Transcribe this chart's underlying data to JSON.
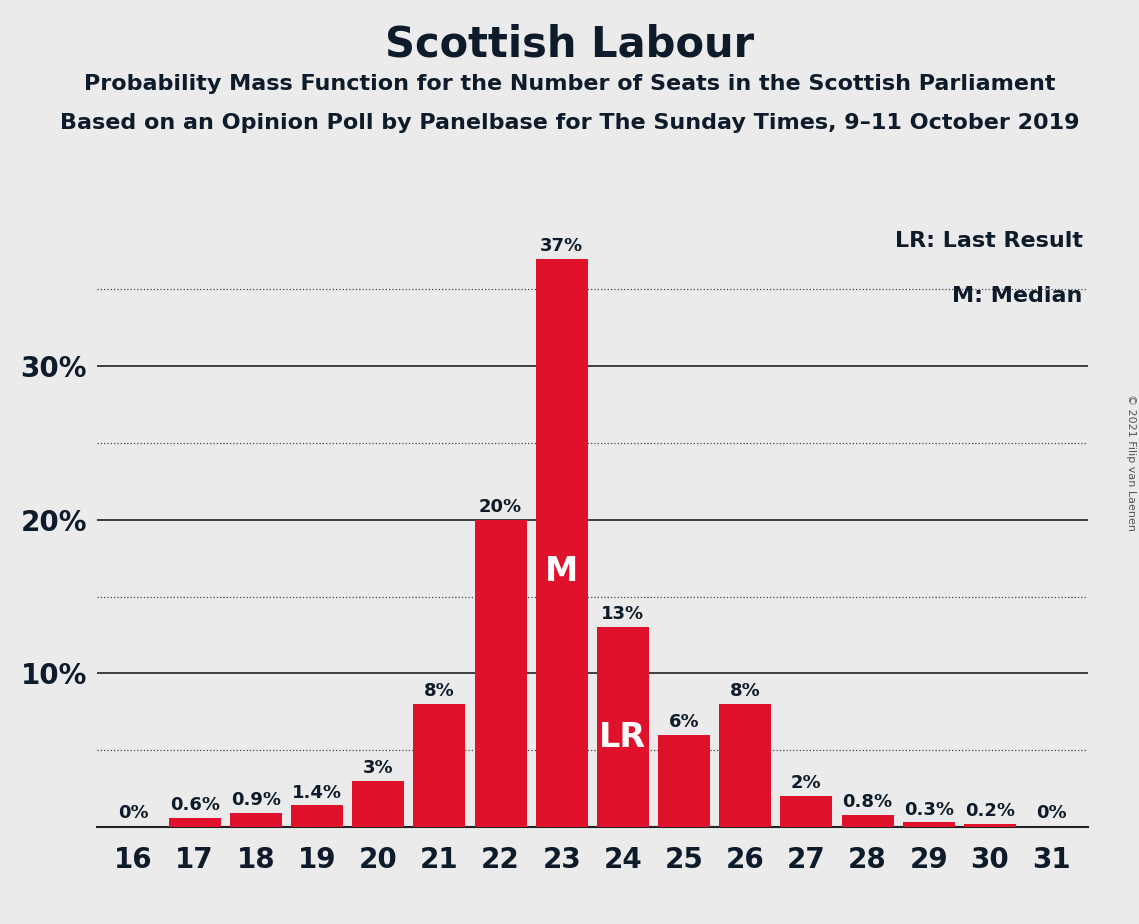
{
  "title": "Scottish Labour",
  "subtitle1": "Probability Mass Function for the Number of Seats in the Scottish Parliament",
  "subtitle2": "Based on an Opinion Poll by Panelbase for The Sunday Times, 9–11 October 2019",
  "copyright": "© 2021 Filip van Laenen",
  "categories": [
    16,
    17,
    18,
    19,
    20,
    21,
    22,
    23,
    24,
    25,
    26,
    27,
    28,
    29,
    30,
    31
  ],
  "values": [
    0.0,
    0.6,
    0.9,
    1.4,
    3.0,
    8.0,
    20.0,
    37.0,
    13.0,
    6.0,
    8.0,
    2.0,
    0.8,
    0.3,
    0.2,
    0.0
  ],
  "labels": [
    "0%",
    "0.6%",
    "0.9%",
    "1.4%",
    "3%",
    "8%",
    "20%",
    "37%",
    "13%",
    "6%",
    "8%",
    "2%",
    "0.8%",
    "0.3%",
    "0.2%",
    "0%"
  ],
  "bar_color": "#E0122B",
  "background_color": "#EBEBEB",
  "axis_color": "#0d1b2a",
  "median_seat": 23,
  "lr_seat": 24,
  "ylim": [
    0,
    40
  ],
  "solid_lines": [
    10,
    20,
    30
  ],
  "dotted_lines": [
    5,
    15,
    25,
    35
  ],
  "title_fontsize": 30,
  "subtitle_fontsize": 16,
  "label_fontsize": 13,
  "tick_fontsize": 20,
  "legend_fontsize": 16,
  "copyright_fontsize": 8
}
